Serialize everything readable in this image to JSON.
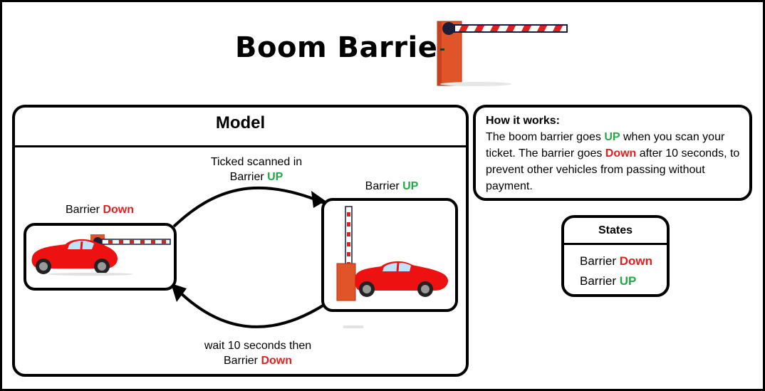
{
  "title": "Boom Barrier",
  "model": {
    "title": "Model",
    "transition_up": {
      "line1": "Ticked scanned in",
      "prefix": "Barrier ",
      "state": "UP"
    },
    "transition_down": {
      "line1": "wait 10 seconds then",
      "prefix": "Barrier ",
      "state": "Down"
    },
    "label_down": {
      "prefix": "Barrier ",
      "state": "Down"
    },
    "label_up": {
      "prefix": "Barrier ",
      "state": "UP"
    }
  },
  "how_it_works": {
    "heading": "How it works:",
    "text_1": "The boom barrier goes ",
    "up": "UP",
    "text_2": " when you scan your ticket. The barrier goes ",
    "down": "Down",
    "text_3": " after 10 seconds, to prevent other vehicles from passing without payment."
  },
  "states": {
    "title": "States",
    "items": [
      {
        "prefix": "Barrier ",
        "state": "Down",
        "color": "red"
      },
      {
        "prefix": "Barrier ",
        "state": "UP",
        "color": "green"
      }
    ]
  },
  "colors": {
    "down_red": "#e02020",
    "up_green": "#22aa44",
    "barrier_orange": "#e0542a",
    "car_red": "#ee1111"
  }
}
